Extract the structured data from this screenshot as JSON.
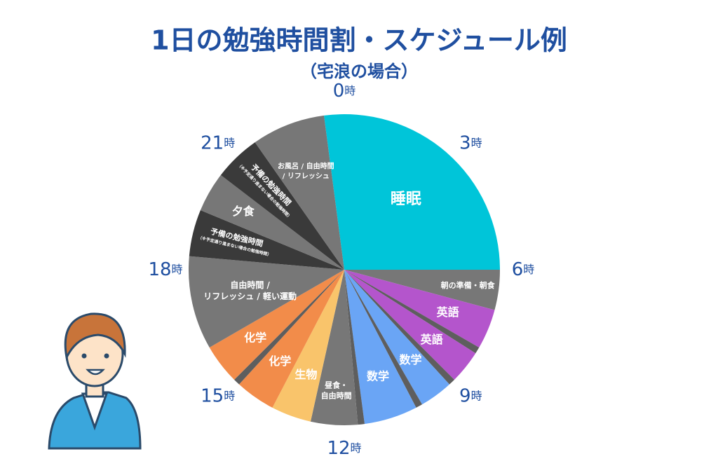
{
  "chart_data": {
    "type": "pie",
    "title": "1日の勉強時間割・スケジュール例",
    "subtitle": "（宅浪の場合）",
    "start": -30,
    "slices": [
      {
        "label": [
          "睡眠"
        ],
        "value": 390,
        "color": "#00c5d9"
      },
      {
        "label": [
          "朝の準備・朝食"
        ],
        "value": 60,
        "color": "#777777"
      },
      {
        "label": [
          "英語"
        ],
        "value": 60,
        "color": "#b455cc"
      },
      {
        "label": null,
        "value": 10,
        "color": "#5e5e5e"
      },
      {
        "label": [
          "英語"
        ],
        "value": 50,
        "color": "#b455cc"
      },
      {
        "label": null,
        "value": 10,
        "color": "#5e5e5e"
      },
      {
        "label": [
          "数学"
        ],
        "value": 50,
        "color": "#6aa5f5"
      },
      {
        "label": null,
        "value": 10,
        "color": "#5e5e5e"
      },
      {
        "label": [
          "数学"
        ],
        "value": 80,
        "color": "#6aa5f5"
      },
      {
        "label": null,
        "value": 10,
        "color": "#5e5e5e"
      },
      {
        "label": [
          "昼食・",
          "自由時間"
        ],
        "value": 70,
        "color": "#777777"
      },
      {
        "label": [
          "生物"
        ],
        "value": 60,
        "color": "#f9c46b"
      },
      {
        "label": [
          "化学"
        ],
        "value": 60,
        "color": "#f28c4a"
      },
      {
        "label": null,
        "value": 10,
        "color": "#5e5e5e"
      },
      {
        "label": [
          "化学"
        ],
        "value": 60,
        "color": "#f28c4a"
      },
      {
        "label": [
          "自由時間 /",
          "リフレッシュ / 軽い運動"
        ],
        "value": 140,
        "color": "#777777"
      },
      {
        "label": [
          "予備の勉強時間",
          "（※予定通り進まない場合の勉強時間）"
        ],
        "value": 70,
        "color": "#3a3a3a"
      },
      {
        "label": [
          "夕食"
        ],
        "value": 60,
        "color": "#777777"
      },
      {
        "label": [
          "予備の勉強時間",
          "（※予定通り進まない場合の勉強時間）"
        ],
        "value": 70,
        "color": "#3a3a3a"
      },
      {
        "label": [
          "お風呂 / 自由時間",
          "/ リフレッシュ"
        ],
        "value": 110,
        "color": "#777777"
      }
    ],
    "ticks": [
      {
        "value": 0,
        "label": "0時"
      },
      {
        "value": 180,
        "label": "3時"
      },
      {
        "value": 360,
        "label": "6時"
      },
      {
        "value": 540,
        "label": "9時"
      },
      {
        "value": 720,
        "label": "12時"
      },
      {
        "value": 900,
        "label": "15時"
      },
      {
        "value": 1080,
        "label": "18時"
      },
      {
        "value": 1260,
        "label": "21時"
      }
    ]
  }
}
